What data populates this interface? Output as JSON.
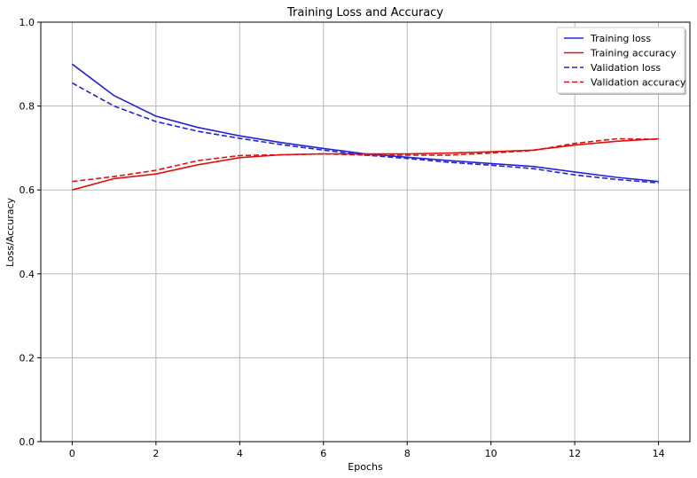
{
  "chart_data": {
    "type": "line",
    "title": "Training Loss and Accuracy",
    "xlabel": "Epochs",
    "ylabel": "Loss/Accuracy",
    "xlim": [
      -0.75,
      14.75
    ],
    "ylim": [
      0.0,
      1.0
    ],
    "x_ticks": [
      0,
      2,
      4,
      6,
      8,
      10,
      12,
      14
    ],
    "y_ticks": [
      0.0,
      0.2,
      0.4,
      0.6,
      0.8,
      1.0
    ],
    "x_tick_labels": [
      "0",
      "2",
      "4",
      "6",
      "8",
      "10",
      "12",
      "14"
    ],
    "y_tick_labels": [
      "0.0",
      "0.2",
      "0.4",
      "0.6",
      "0.8",
      "1.0"
    ],
    "grid": true,
    "legend_position": "top-right",
    "x": [
      0,
      1,
      2,
      3,
      4,
      5,
      6,
      7,
      8,
      9,
      10,
      11,
      12,
      13,
      14
    ],
    "series": [
      {
        "name": "Training loss",
        "color": "#2222dd",
        "style": "solid",
        "values": [
          0.9,
          0.825,
          0.776,
          0.749,
          0.729,
          0.713,
          0.699,
          0.686,
          0.678,
          0.67,
          0.663,
          0.656,
          0.643,
          0.63,
          0.62
        ]
      },
      {
        "name": "Training accuracy",
        "color": "#dd1111",
        "style": "solid",
        "values": [
          0.6,
          0.627,
          0.638,
          0.66,
          0.677,
          0.684,
          0.686,
          0.686,
          0.686,
          0.688,
          0.691,
          0.695,
          0.707,
          0.716,
          0.722
        ]
      },
      {
        "name": "Validation loss",
        "color": "#2222dd",
        "style": "dashed",
        "values": [
          0.855,
          0.8,
          0.763,
          0.74,
          0.723,
          0.708,
          0.695,
          0.683,
          0.675,
          0.666,
          0.659,
          0.651,
          0.636,
          0.625,
          0.617
        ]
      },
      {
        "name": "Validation accuracy",
        "color": "#dd1111",
        "style": "dashed",
        "values": [
          0.62,
          0.632,
          0.647,
          0.67,
          0.682,
          0.684,
          0.686,
          0.683,
          0.683,
          0.683,
          0.688,
          0.694,
          0.711,
          0.722,
          0.721
        ]
      }
    ]
  }
}
